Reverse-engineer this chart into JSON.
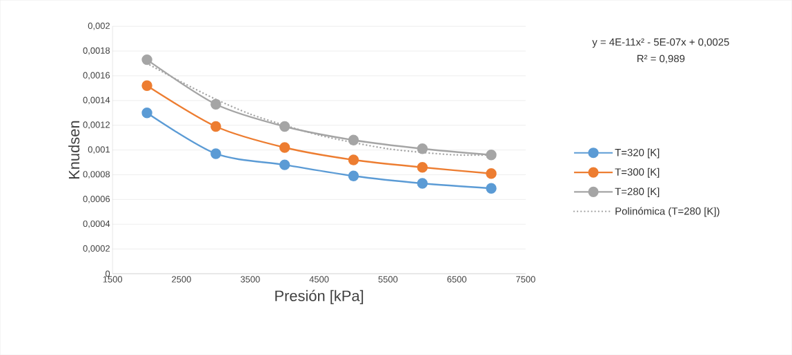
{
  "chart_data": {
    "type": "line",
    "xlabel": "Presión [kPa]",
    "ylabel": "Knudsen",
    "x": [
      2000,
      3000,
      4000,
      5000,
      6000,
      7000
    ],
    "series": [
      {
        "name": "T=320 [K]",
        "color": "#5b9bd5",
        "values": [
          0.0013,
          0.00097,
          0.00088,
          0.00079,
          0.00073,
          0.00069
        ]
      },
      {
        "name": "T=300 [K]",
        "color": "#ed7d31",
        "values": [
          0.00152,
          0.00119,
          0.00102,
          0.00092,
          0.00086,
          0.00081
        ]
      },
      {
        "name": "T=280 [K]",
        "color": "#a5a5a5",
        "values": [
          0.00173,
          0.00137,
          0.00119,
          0.00108,
          0.00101,
          0.00096
        ]
      },
      {
        "name": "Polinómica (T=280 [K])",
        "color": "#a5a5a5",
        "type": "line",
        "line_style": "dotted",
        "marker": "none",
        "x": [
          2000,
          2500,
          3000,
          3500,
          4000,
          4500,
          5000,
          5500,
          6000,
          6500,
          7000
        ],
        "values": [
          0.0017,
          0.00155,
          0.00141,
          0.00129,
          0.0012,
          0.00112,
          0.00106,
          0.00101,
          0.00098,
          0.00096,
          0.00096
        ]
      }
    ],
    "xlim": [
      1500,
      7500
    ],
    "xticks": [
      1500,
      2500,
      3500,
      4500,
      5500,
      6500,
      7500
    ],
    "ylim": [
      0,
      0.002
    ],
    "yticks": [
      0,
      {
        "value": 0.0002,
        "label": "0,0002"
      },
      {
        "value": 0.0004,
        "label": "0,0004"
      },
      {
        "value": 0.0006,
        "label": "0,0006"
      },
      {
        "value": 0.0008,
        "label": "0,0008"
      },
      {
        "value": 0.001,
        "label": "0,001"
      },
      {
        "value": 0.0012,
        "label": "0,0012"
      },
      {
        "value": 0.0014,
        "label": "0,0014"
      },
      {
        "value": 0.0016,
        "label": "0,0016"
      },
      {
        "value": 0.0018,
        "label": "0,0018"
      },
      {
        "value": 0.002,
        "label": "0,002"
      }
    ],
    "grid": "y",
    "legend": "right",
    "marker": "circle",
    "line_style": "solid",
    "annotations": [
      "y = 4E-11x² - 5E-07x + 0,0025",
      "R² = 0,989"
    ]
  }
}
